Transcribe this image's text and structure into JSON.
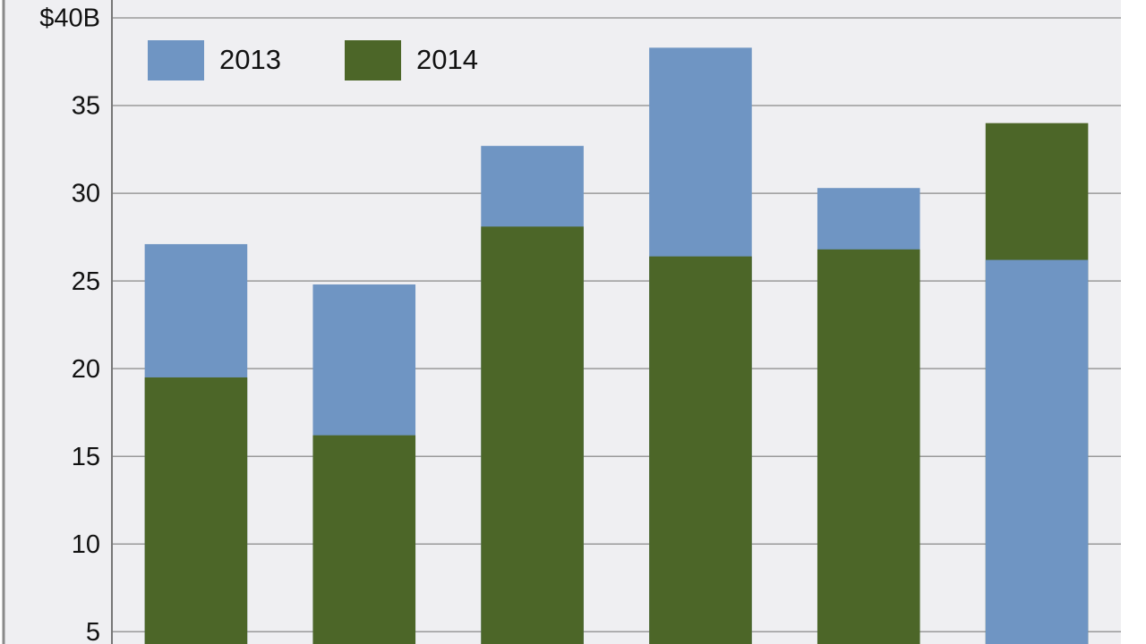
{
  "chart_data": {
    "type": "overlapping-bar",
    "categories": [
      null,
      null,
      null,
      null,
      null,
      null
    ],
    "series": [
      {
        "name": "2013",
        "color": "#6f95c3",
        "values": [
          27.1,
          24.8,
          32.7,
          38.3,
          30.3,
          26.2
        ]
      },
      {
        "name": "2014",
        "color": "#4c6628",
        "values": [
          19.5,
          16.2,
          28.1,
          26.4,
          26.8,
          34.0
        ]
      }
    ],
    "ylim": [
      4.3,
      40
    ],
    "yticks": [
      5,
      10,
      15,
      20,
      25,
      30,
      35,
      {
        "value": 40,
        "label": "$40B"
      }
    ],
    "grid": true,
    "legend": "top-left"
  }
}
